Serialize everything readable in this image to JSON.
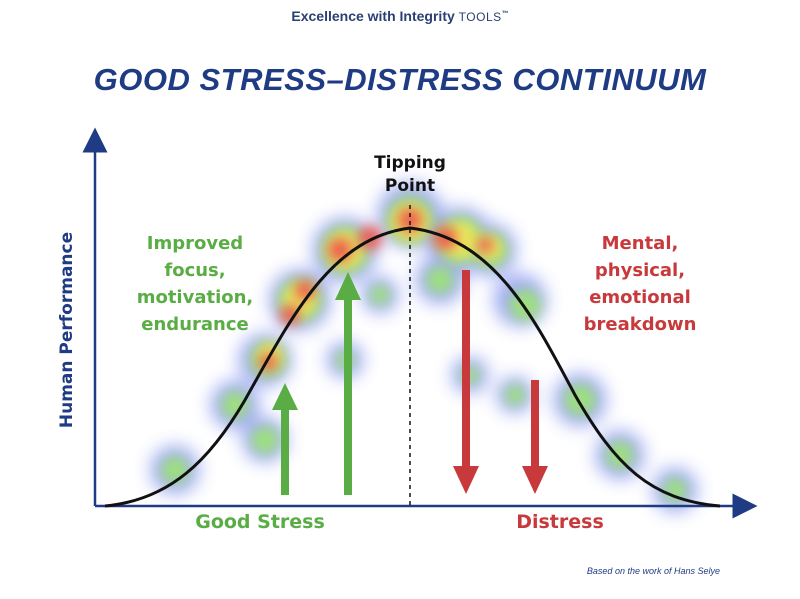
{
  "header": {
    "brand": "Excellence with Integrity",
    "brand_tools": "TOOLS",
    "brand_tm": "™"
  },
  "title": "GOOD STRESS–DISTRESS CONTINUUM",
  "axes": {
    "y_label": "Human Performance"
  },
  "labels": {
    "tipping_point": "Tipping\nPoint",
    "good_effects": "Improved\nfocus,\nmotivation,\nendurance",
    "bad_effects": "Mental,\nphysical,\nemotional\nbreakdown",
    "good_stress": "Good Stress",
    "distress": "Distress"
  },
  "footer": {
    "credit": "Based on the work of Hans Selye"
  },
  "colors": {
    "title_blue": "#1f3b84",
    "good_green": "#5aad45",
    "distress_red": "#c8393c",
    "curve": "#111111"
  }
}
